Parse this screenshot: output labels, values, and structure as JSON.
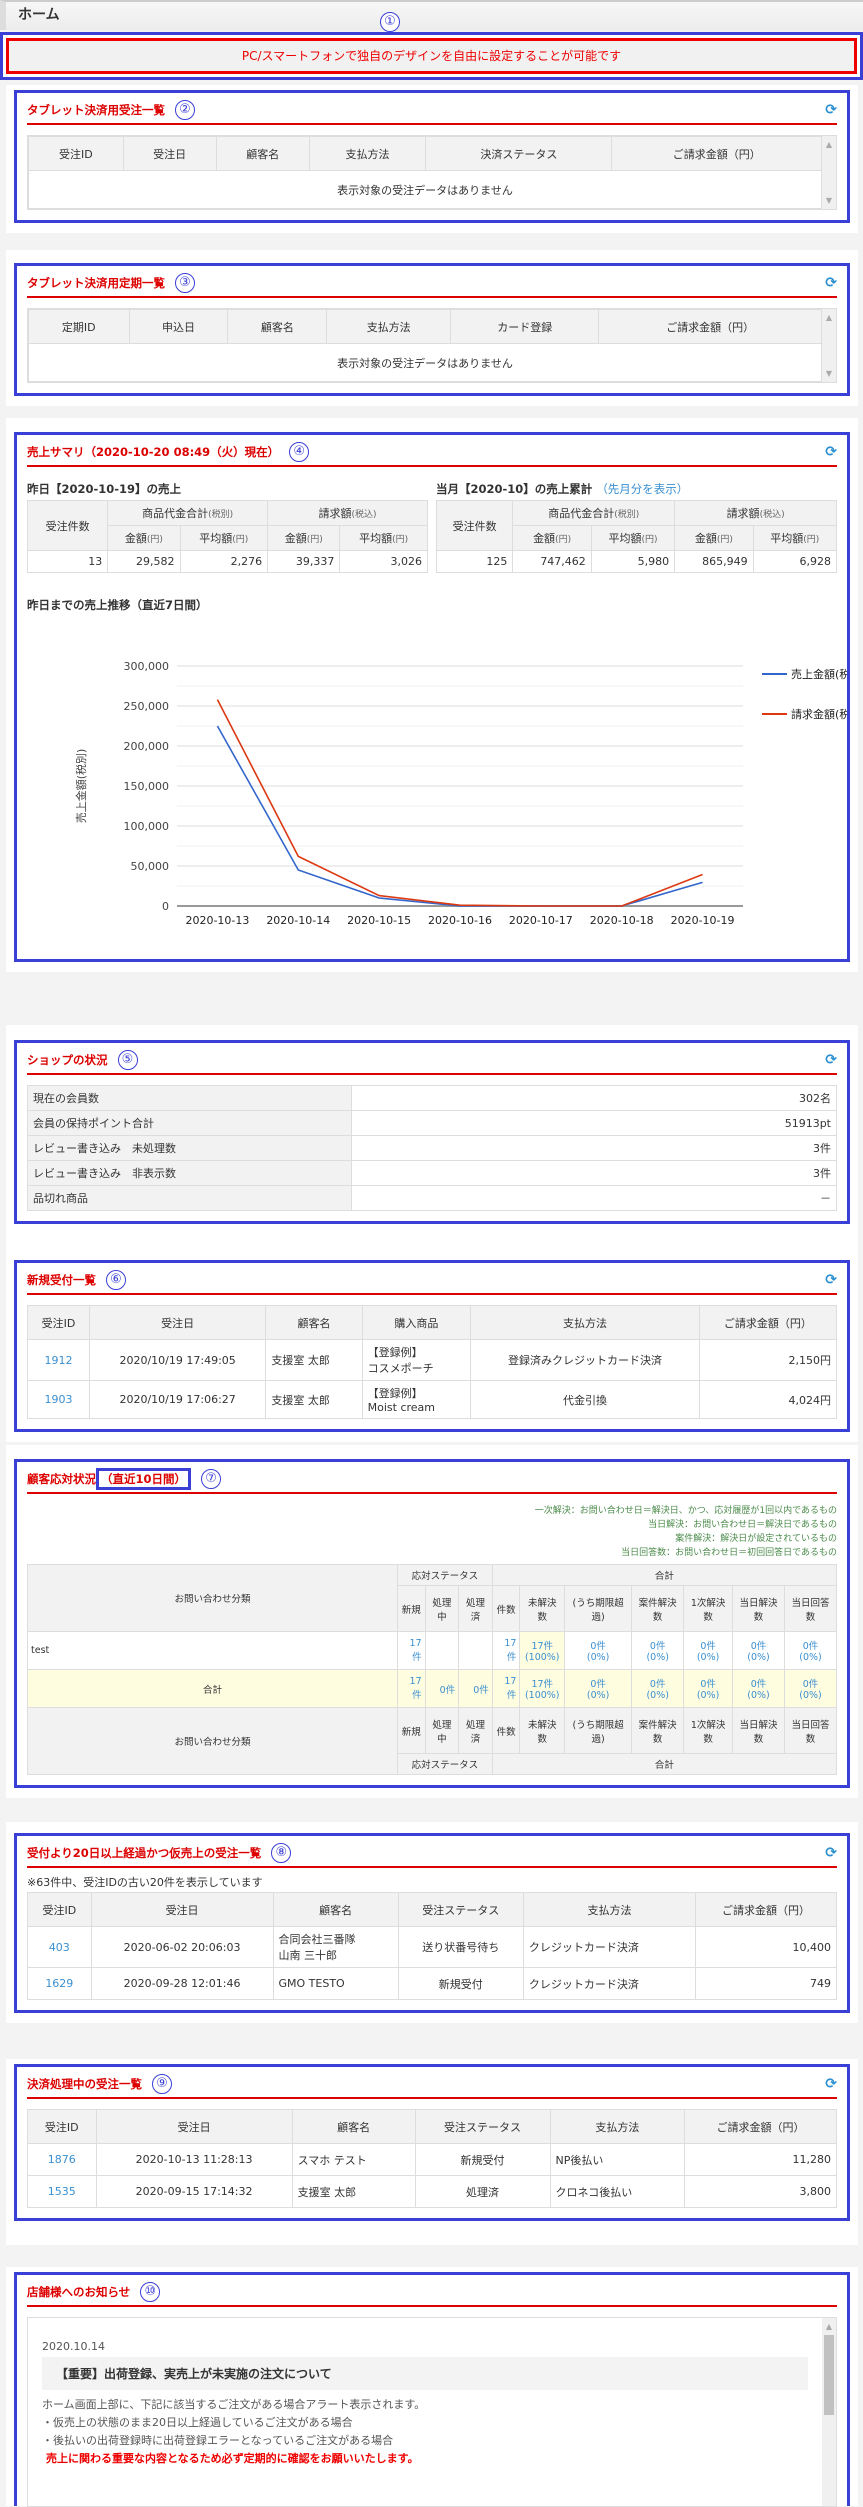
{
  "header": {
    "title": "ホーム"
  },
  "annotations": [
    "①",
    "②",
    "③",
    "④",
    "⑤",
    "⑥",
    "⑦",
    "⑧",
    "⑨",
    "⑩"
  ],
  "colors": {
    "accent_red": "#dd0000",
    "annotation_blue": "#3a3fd6",
    "link": "#3a8fd0",
    "series1": "#3366cc",
    "series2": "#dc3912"
  },
  "banner": {
    "text": "PC/スマートフォンで独自のデザインを自由に設定することが可能です"
  },
  "refresh_icon": "refresh-icon",
  "tablet_orders": {
    "title": "タブレット決済用受注一覧",
    "columns": [
      "受注ID",
      "受注日",
      "顧客名",
      "支払方法",
      "決済ステータス",
      "ご請求金額（円）"
    ],
    "empty": "表示対象の受注データはありません"
  },
  "tablet_subs": {
    "title": "タブレット決済用定期一覧",
    "columns": [
      "定期ID",
      "申込日",
      "顧客名",
      "支払方法",
      "カード登録",
      "ご請求金額（円）"
    ],
    "empty": "表示対象の受注データはありません"
  },
  "sales": {
    "title": "売上サマリ（2020-10-20 08:49（火）現在）",
    "yesterday": {
      "label": "昨日【2020-10-19】の売上",
      "h_count": "受注件数",
      "h_goods": "商品代金合計",
      "h_goods_tax": "(税別)",
      "h_bill": "請求額",
      "h_bill_tax": "(税込)",
      "h_amount": "金額",
      "h_avg": "平均額",
      "yen": "(円)",
      "values": [
        "13",
        "29,582",
        "2,276",
        "39,337",
        "3,026"
      ]
    },
    "month": {
      "label": "当月【2020-10】の売上累計",
      "link": "（先月分を表示）",
      "values": [
        "125",
        "747,462",
        "5,980",
        "865,949",
        "6,928"
      ]
    },
    "trend_title": "昨日までの売上推移（直近7日間）"
  },
  "chart_data": {
    "type": "line",
    "ylabel": "売上金額(税別)",
    "ylim": [
      0,
      300000
    ],
    "yticks": [
      "300,000",
      "250,000",
      "200,000",
      "150,000",
      "100,000",
      "50,000",
      "0"
    ],
    "grid": true,
    "legend": "right",
    "categories": [
      "2020-10-13",
      "2020-10-14",
      "2020-10-15",
      "2020-10-16",
      "2020-10-17",
      "2020-10-18",
      "2020-10-19"
    ],
    "series": [
      {
        "name": "売上金額(税別)",
        "color": "#3366cc",
        "values": [
          225000,
          45000,
          10000,
          0,
          0,
          0,
          29582
        ]
      },
      {
        "name": "請求金額(税込)",
        "color": "#dc3912",
        "values": [
          258000,
          62000,
          13000,
          1000,
          0,
          0,
          39337
        ]
      }
    ]
  },
  "shop": {
    "title": "ショップの状況",
    "rows": [
      [
        "現在の会員数",
        "302名"
      ],
      [
        "会員の保持ポイント合計",
        "51913pt"
      ],
      [
        "レビュー書き込み　未処理数",
        "3件"
      ],
      [
        "レビュー書き込み　非表示数",
        "3件"
      ],
      [
        "品切れ商品",
        "－"
      ]
    ]
  },
  "new_orders": {
    "title": "新規受付一覧",
    "columns": [
      "受注ID",
      "受注日",
      "顧客名",
      "購入商品",
      "支払方法",
      "ご請求金額（円）"
    ],
    "rows": [
      [
        "1912",
        "2020/10/19 17:49:05",
        "支援室 太郎",
        "【登録例】\nコスメポーチ",
        "登録済みクレジットカード決済",
        "2,150円"
      ],
      [
        "1903",
        "2020/10/19 17:06:27",
        "支援室 太郎",
        "【登録例】\nMoist cream",
        "代金引換",
        "4,024円"
      ]
    ]
  },
  "cs": {
    "title": "顧客応対状況",
    "period": "（直近10日間）",
    "notes": [
      "一次解決：お問い合わせ日＝解決日、かつ、応対履歴が1回以内であるもの",
      "当日解決：お問い合わせ日＝解決日であるもの",
      "案件解決：解決日が設定されているもの",
      "当日回答数：お問い合わせ日＝初回回答日であるもの"
    ],
    "h_category": "お問い合わせ分類",
    "h_status": "応対ステータス",
    "h_total": "合計",
    "cols": [
      "新規",
      "処理中",
      "処理済",
      "件数",
      "未解決数",
      "(うち期限超過)",
      "案件解決数",
      "1次解決数",
      "当日解決数",
      "当日回答数"
    ],
    "rows": [
      {
        "label": "test",
        "cells": [
          "17件",
          "",
          "",
          "17件",
          "17件\n(100%)",
          "0件\n(0%)",
          "0件\n(0%)",
          "0件\n(0%)",
          "0件\n(0%)",
          "0件\n(0%)"
        ]
      },
      {
        "label": "合計",
        "cells": [
          "17件",
          "0件",
          "0件",
          "17件",
          "17件\n(100%)",
          "0件\n(0%)",
          "0件\n(0%)",
          "0件\n(0%)",
          "0件\n(0%)",
          "0件\n(0%)"
        ]
      }
    ]
  },
  "old_orders": {
    "title": "受付より20日以上経過かつ仮売上の受注一覧",
    "note": "※63件中、受注IDの古い20件を表示しています",
    "columns": [
      "受注ID",
      "受注日",
      "顧客名",
      "受注ステータス",
      "支払方法",
      "ご請求金額（円）"
    ],
    "rows": [
      [
        "403",
        "2020-06-02 20:06:03",
        "合同会社三番隊\n山南 三十郎",
        "送り状番号待ち",
        "クレジットカード決済",
        "10,400"
      ],
      [
        "1629",
        "2020-09-28 12:01:46",
        "GMO TESTO",
        "新規受付",
        "クレジットカード決済",
        "749"
      ]
    ]
  },
  "pending": {
    "title": "決済処理中の受注一覧",
    "columns": [
      "受注ID",
      "受注日",
      "顧客名",
      "受注ステータス",
      "支払方法",
      "ご請求金額（円）"
    ],
    "rows": [
      [
        "1876",
        "2020-10-13 11:28:13",
        "スマホ テスト",
        "新規受付",
        "NP後払い",
        "11,280"
      ],
      [
        "1535",
        "2020-09-15 17:14:32",
        "支援室 太郎",
        "処理済",
        "クロネコ後払い",
        "3,800"
      ]
    ]
  },
  "notice": {
    "title": "店舗様へのお知らせ",
    "date": "2020.10.14",
    "heading": "【重要】出荷登録、実売上が未実施の注文について",
    "lines": [
      "ホーム画面上部に、下記に該当するご注文がある場合アラート表示されます。",
      "・仮売上の状態のまま20日以上経過しているご注文がある場合",
      "・後払いの出荷登録時に出荷登録エラーとなっているご注文がある場合"
    ],
    "emphasis": "売上に関わる重要な内容となるため必ず定期的に確認をお願いいたします。"
  }
}
